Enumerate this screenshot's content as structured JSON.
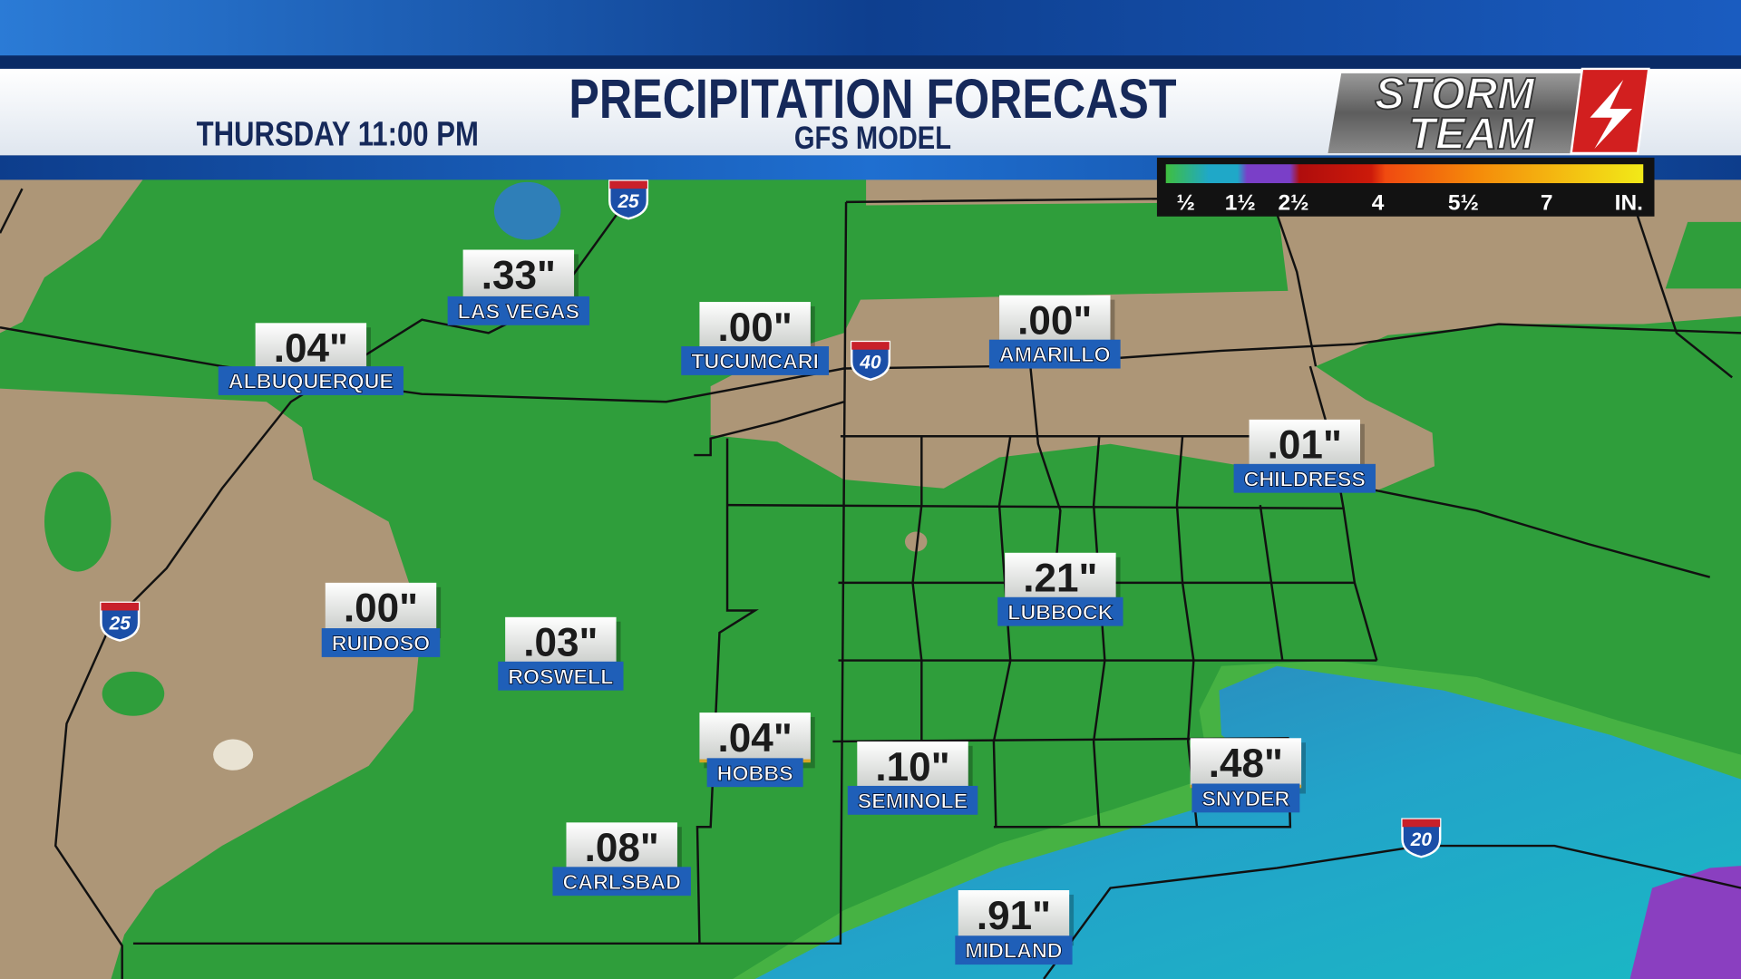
{
  "header": {
    "title": "PRECIPITATION FORECAST",
    "subtitle": "GFS MODEL",
    "time": "THURSDAY 11:00 PM",
    "logo": [
      "STORM",
      "TEAM"
    ]
  },
  "legend": {
    "labels": [
      "½",
      "1½",
      "2½",
      "4",
      "5½",
      "7",
      "IN."
    ]
  },
  "cities": [
    {
      "amount": ".33\"",
      "name": "LAS VEGAS"
    },
    {
      "amount": ".04\"",
      "name": "ALBUQUERQUE"
    },
    {
      "amount": ".00\"",
      "name": "TUCUMCARI"
    },
    {
      "amount": ".00\"",
      "name": "AMARILLO"
    },
    {
      "amount": ".01\"",
      "name": "CHILDRESS"
    },
    {
      "amount": ".21\"",
      "name": "LUBBOCK"
    },
    {
      "amount": ".00\"",
      "name": "RUIDOSO"
    },
    {
      "amount": ".03\"",
      "name": "ROSWELL"
    },
    {
      "amount": ".04\"",
      "name": "HOBBS"
    },
    {
      "amount": ".10\"",
      "name": "SEMINOLE"
    },
    {
      "amount": ".48\"",
      "name": "SNYDER"
    },
    {
      "amount": ".08\"",
      "name": "CARLSBAD"
    },
    {
      "amount": ".91\"",
      "name": "MIDLAND"
    }
  ],
  "shields": [
    "25",
    "40",
    "25",
    "20"
  ]
}
